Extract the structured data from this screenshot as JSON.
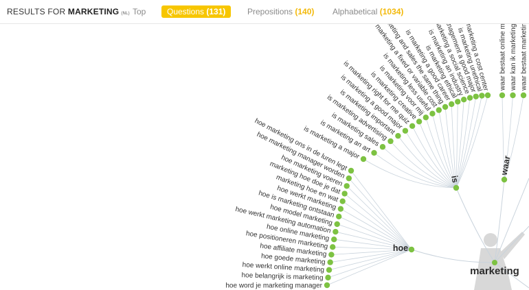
{
  "header": {
    "results_prefix": "RESULTS FOR",
    "keyword": "MARKETING",
    "lang": "(NL)"
  },
  "tabs": [
    {
      "label": "Top",
      "count": ""
    },
    {
      "label": "Questions",
      "count": "(131)"
    },
    {
      "label": "Prepositions",
      "count": "(140)"
    },
    {
      "label": "Alphabetical",
      "count": "(1034)"
    }
  ],
  "colors": {
    "node": "#7dc242",
    "link": "#c9d3dc",
    "active_tab": "#f7c600",
    "text": "#333333"
  },
  "wheel": {
    "center_label": "marketing",
    "groups": [
      {
        "label": "hoe",
        "items": [
          "hoe marketing ons in de luren legt",
          "hoe marketing manager worden",
          "hoe marketing voeren",
          "marketing hoe doe je dat",
          "marketing hoe en wat",
          "hoe werkt marketing",
          "hoe is marketing ontstaan",
          "hoe model marketing",
          "hoe werkt marketing automation",
          "hoe online marketing",
          "hoe positioneren marketing",
          "hoe affiliate marketing",
          "hoe goede marketing",
          "hoe werkt online marketing",
          "hoe belangrijk is marketing",
          "hoe word je marketing manager"
        ]
      },
      {
        "label": "is",
        "items": [
          "is marketing a major",
          "is marketing an art",
          "is marketing sales",
          "is marketing advertising",
          "is marketing important",
          "is marketing a good major",
          "is marketing right for me quiz",
          "is marketing creative",
          "is marketing voor mij",
          "is marketing less useful",
          "is marketing a fixed or variable cost",
          "is marketing and sales the same thing",
          "is marketing a good career",
          "is marketing ethical",
          "is marketing an industry",
          "is marketing a social science",
          "is marketing management a good major",
          "is marketing unethical",
          "is marketing a cost center"
        ]
      },
      {
        "label": "waar",
        "items": [
          "waar bestaat online marketing uit",
          "waar kan ik marketing studeren",
          "waar bestaat marketing uit"
        ]
      }
    ]
  }
}
